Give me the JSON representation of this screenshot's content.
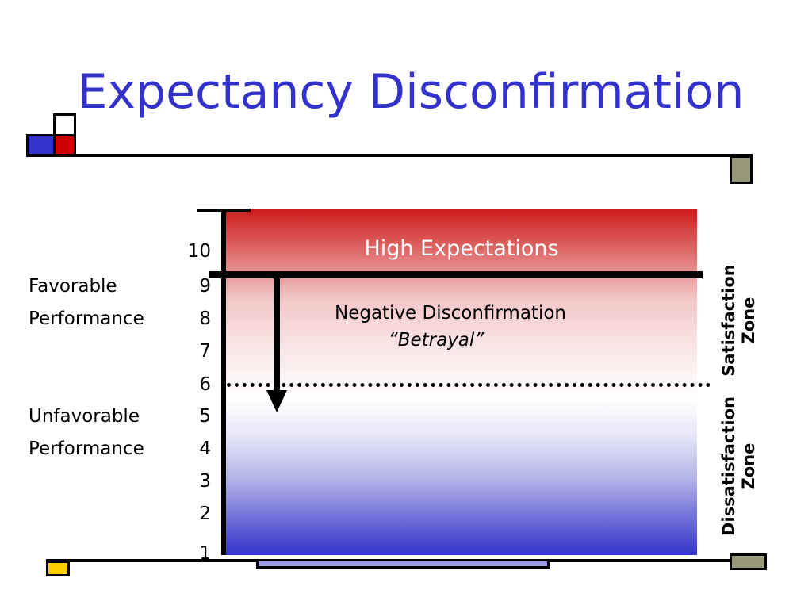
{
  "title": "Expectancy Disconfirmation",
  "scale": {
    "ticks": [
      "10",
      "9",
      "8",
      "7",
      "6",
      "5",
      "4",
      "3",
      "2",
      "1"
    ]
  },
  "left_labels": {
    "favorable": [
      "Favorable",
      "Performance"
    ],
    "unfavorable": [
      "Unfavorable",
      "Performance"
    ]
  },
  "regions": {
    "high_expectations": "High Expectations",
    "negative_disconfirmation": "Negative Disconfirmation",
    "betrayal": "“Betrayal”"
  },
  "zones": {
    "satisfaction": [
      "Satisfaction",
      "Zone"
    ],
    "dissatisfaction": [
      "Dissatisfaction",
      "Zone"
    ]
  },
  "expectation_level": 9,
  "threshold_level": 6,
  "colors": {
    "title": "#3333cc",
    "top_gradient": "#cc1b1b",
    "bottom_gradient": "#3333cc",
    "deco_blue": "#3333cc",
    "deco_red": "#cc0000",
    "deco_olive": "#99997a",
    "deco_yellow": "#ffcc00",
    "deco_lavender": "#9999e6"
  }
}
